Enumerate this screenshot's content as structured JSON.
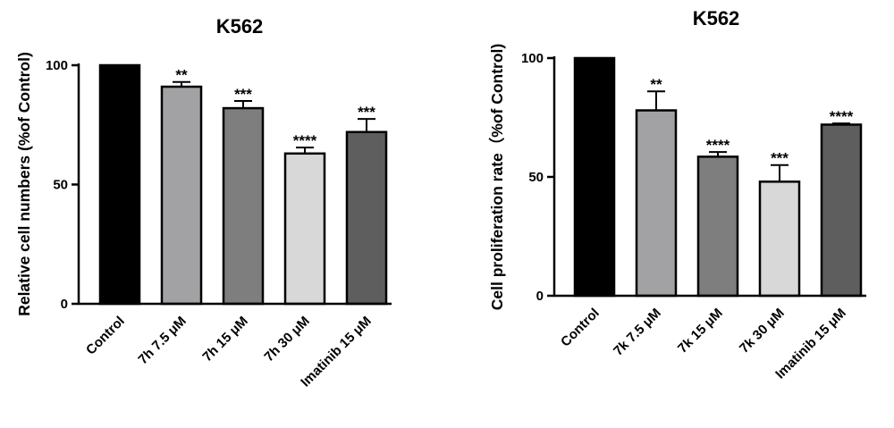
{
  "chart_data": [
    {
      "type": "bar",
      "title": "K562",
      "ylabel": "Relative cell numbers (%of Control)",
      "xlabel": "",
      "ylim": [
        0,
        100
      ],
      "yticks": [
        0,
        50,
        100
      ],
      "categories": [
        "Control",
        "7h 7.5 μM",
        "7h 15 μM",
        "7h 30 μM",
        "Imatinib 15 μM"
      ],
      "values": [
        100,
        91,
        82,
        63,
        72
      ],
      "errors": [
        0,
        2,
        3,
        2.5,
        5.5
      ],
      "significance": [
        "",
        "**",
        "***",
        "****",
        "***"
      ],
      "bar_colors": [
        "#000000",
        "#a2a2a4",
        "#7e7e7e",
        "#d8d8d8",
        "#5e5e5e"
      ],
      "grid": false
    },
    {
      "type": "bar",
      "title": "K562",
      "ylabel": "Cell proliferation rate（%of Control)",
      "xlabel": "",
      "ylim": [
        0,
        100
      ],
      "yticks": [
        0,
        50,
        100
      ],
      "categories": [
        "Control",
        "7k 7.5 μM",
        "7k 15 μM",
        "7k 30 μM",
        "Imatinib 15 μM"
      ],
      "values": [
        100,
        78,
        58.5,
        48,
        72
      ],
      "errors": [
        0,
        8,
        2,
        7,
        0.5
      ],
      "significance": [
        "",
        "**",
        "****",
        "***",
        "****"
      ],
      "bar_colors": [
        "#000000",
        "#a2a2a4",
        "#7e7e7e",
        "#d8d8d8",
        "#5e5e5e"
      ],
      "grid": false
    }
  ]
}
